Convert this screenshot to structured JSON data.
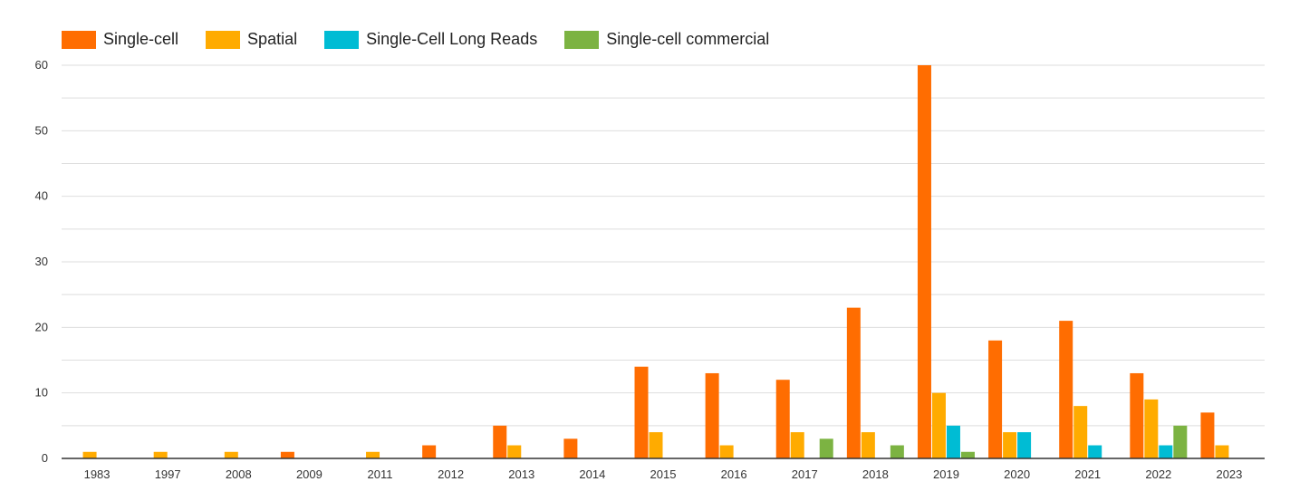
{
  "chart_data": {
    "type": "bar",
    "title": "",
    "xlabel": "",
    "ylabel": "",
    "ylim": [
      0,
      60
    ],
    "yticks": [
      0,
      10,
      20,
      30,
      40,
      50,
      60
    ],
    "grid": true,
    "legend_position": "top-left",
    "categories": [
      "1983",
      "1997",
      "2008",
      "2009",
      "2011",
      "2012",
      "2013",
      "2014",
      "2015",
      "2016",
      "2017",
      "2018",
      "2019",
      "2020",
      "2021",
      "2022",
      "2023"
    ],
    "series": [
      {
        "name": "Single-cell",
        "color": "#ff6d01",
        "values": [
          0,
          0,
          0,
          1,
          0,
          2,
          5,
          3,
          14,
          13,
          12,
          23,
          60,
          18,
          21,
          13,
          7
        ]
      },
      {
        "name": "Spatial",
        "color": "#ffab00",
        "values": [
          1,
          1,
          1,
          0,
          1,
          0,
          2,
          0,
          4,
          2,
          4,
          4,
          10,
          4,
          8,
          9,
          2
        ]
      },
      {
        "name": "Single-Cell Long Reads",
        "color": "#00bcd4",
        "values": [
          0,
          0,
          0,
          0,
          0,
          0,
          0,
          0,
          0,
          0,
          0,
          0,
          5,
          4,
          2,
          2,
          0
        ]
      },
      {
        "name": "Single-cell commercial",
        "color": "#7cb342",
        "values": [
          0,
          0,
          0,
          0,
          0,
          0,
          0,
          0,
          0,
          0,
          3,
          2,
          1,
          0,
          0,
          5,
          0
        ]
      }
    ]
  }
}
